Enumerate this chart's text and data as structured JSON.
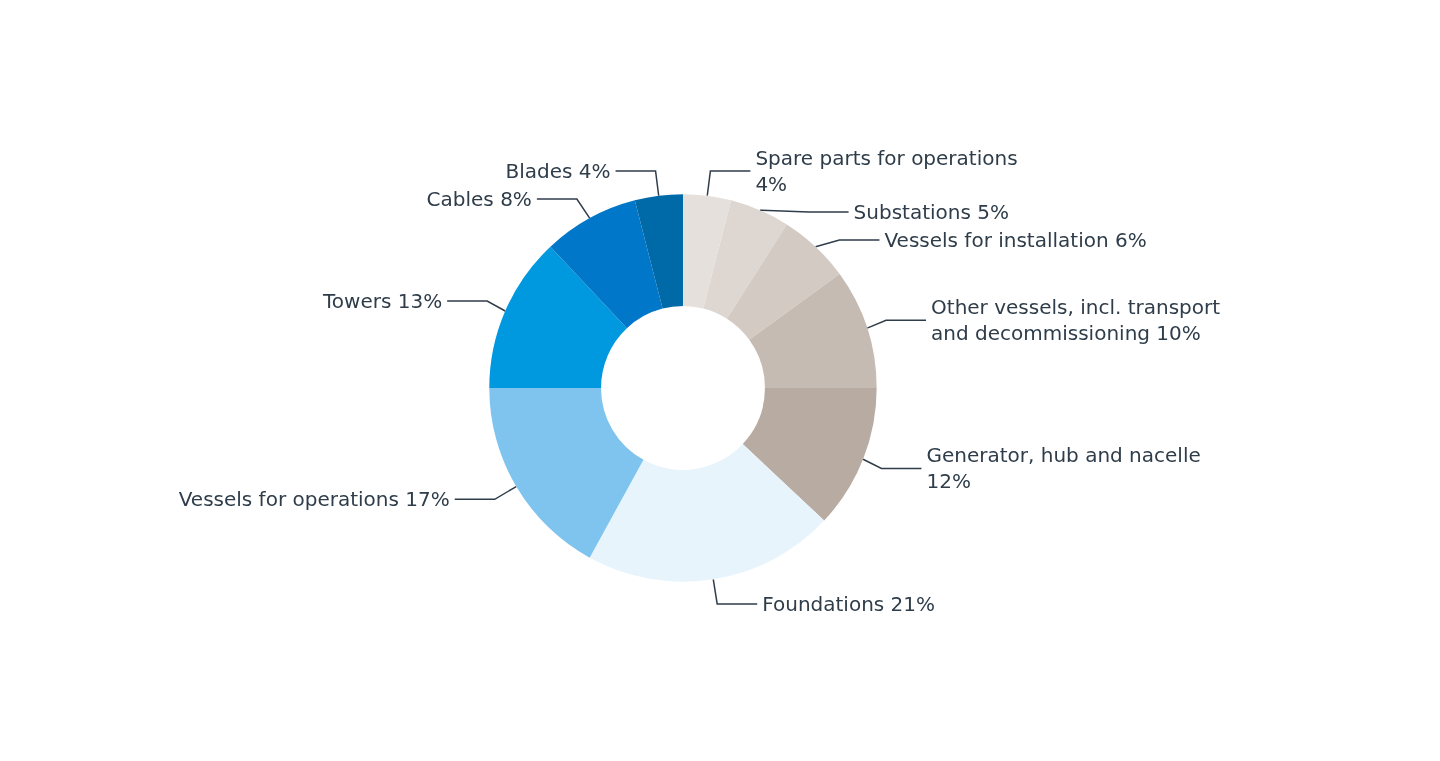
{
  "chart_data": {
    "type": "donut",
    "categories": [
      "Spare parts for operations",
      "Substations",
      "Vessels for installation",
      "Other vessels, incl. transport and decommissioning",
      "Generator, hub and nacelle",
      "Foundations",
      "Vessels for operations",
      "Towers",
      "Cables",
      "Blades"
    ],
    "values": [
      4,
      5,
      6,
      10,
      12,
      21,
      17,
      13,
      8,
      4
    ],
    "colors": [
      "#e6e0dc",
      "#ddd6d1",
      "#d3cac3",
      "#c6bbb3",
      "#b8aba2",
      "#e8f4fc",
      "#7fc4ee",
      "#0099df",
      "#0077c8",
      "#006aa8"
    ],
    "value_labels": [
      "4%",
      "5%",
      "6%",
      "10%",
      "12%",
      "21%",
      "17%",
      "13%",
      "8%",
      "4%"
    ],
    "legend": false
  }
}
